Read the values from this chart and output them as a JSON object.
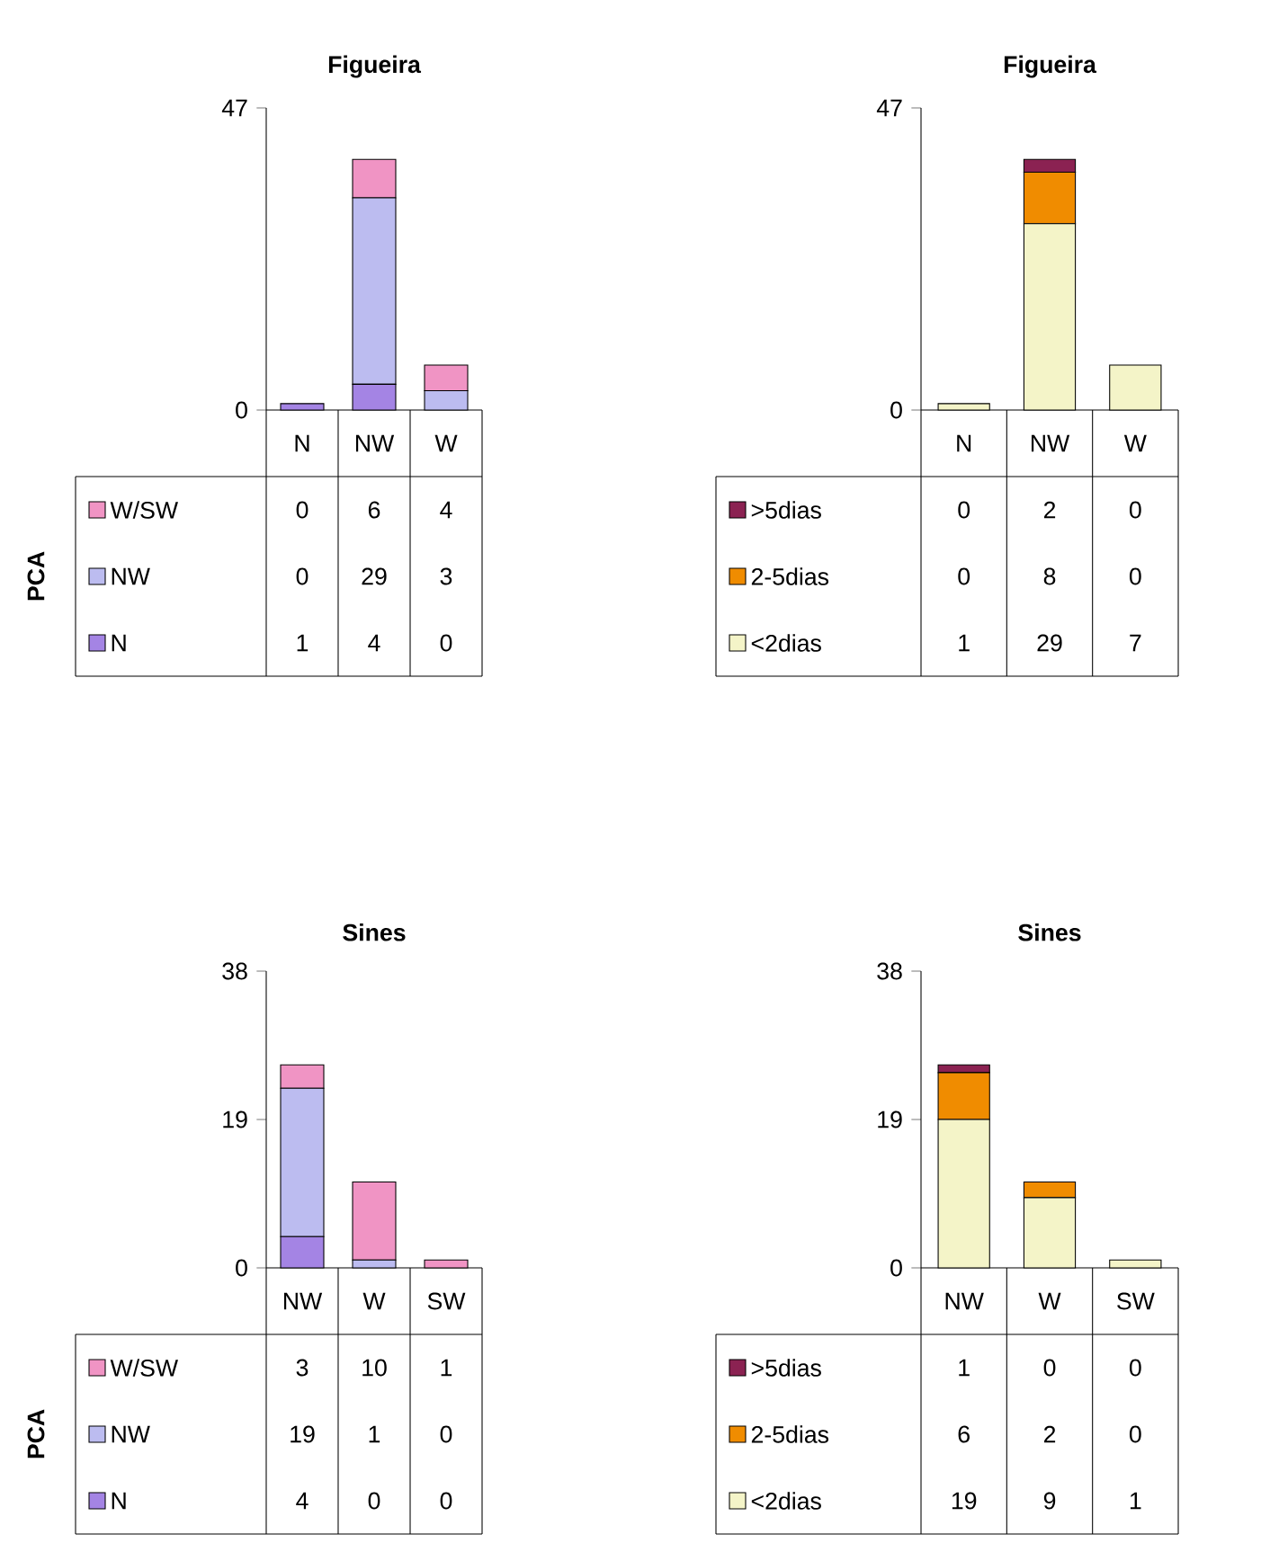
{
  "chart_data": [
    {
      "type": "bar",
      "stacked": true,
      "title": "Figueira",
      "ylabel": "PCA",
      "categories": [
        "N",
        "NW",
        "W"
      ],
      "ylim": [
        0,
        47
      ],
      "yticks": [
        0,
        47
      ],
      "data_labels": true,
      "legend": "bottom",
      "series": [
        {
          "name": "N",
          "color": "#a484e4",
          "values": [
            1,
            4,
            0
          ]
        },
        {
          "name": "NW",
          "color": "#bcbcf0",
          "values": [
            0,
            29,
            3
          ]
        },
        {
          "name": "W/SW",
          "color": "#f094c4",
          "values": [
            0,
            6,
            4
          ]
        }
      ]
    },
    {
      "type": "bar",
      "stacked": true,
      "title": "Figueira",
      "categories": [
        "N",
        "NW",
        "W"
      ],
      "ylim": [
        0,
        47
      ],
      "yticks": [
        0,
        47
      ],
      "data_labels": true,
      "legend": "bottom",
      "series": [
        {
          "name": "<2dias",
          "color": "#f4f4c8",
          "values": [
            1,
            29,
            7
          ]
        },
        {
          "name": "2-5dias",
          "color": "#f08c00",
          "values": [
            0,
            8,
            0
          ]
        },
        {
          "name": ">5dias",
          "color": "#8b2252",
          "values": [
            0,
            2,
            0
          ]
        }
      ]
    },
    {
      "type": "bar",
      "stacked": true,
      "title": "Sines",
      "ylabel": "PCA",
      "categories": [
        "NW",
        "W",
        "SW"
      ],
      "ylim": [
        0,
        38
      ],
      "yticks": [
        0,
        19,
        38
      ],
      "data_labels": true,
      "legend": "bottom",
      "series": [
        {
          "name": "N",
          "color": "#a484e4",
          "values": [
            4,
            0,
            0
          ]
        },
        {
          "name": "NW",
          "color": "#bcbcf0",
          "values": [
            19,
            1,
            0
          ]
        },
        {
          "name": "W/SW",
          "color": "#f094c4",
          "values": [
            3,
            10,
            1
          ]
        }
      ]
    },
    {
      "type": "bar",
      "stacked": true,
      "title": "Sines",
      "categories": [
        "NW",
        "W",
        "SW"
      ],
      "ylim": [
        0,
        38
      ],
      "yticks": [
        0,
        19,
        38
      ],
      "data_labels": true,
      "legend": "bottom",
      "series": [
        {
          "name": "<2dias",
          "color": "#f4f4c8",
          "values": [
            19,
            9,
            1
          ]
        },
        {
          "name": "2-5dias",
          "color": "#f08c00",
          "values": [
            6,
            2,
            0
          ]
        },
        {
          "name": ">5dias",
          "color": "#8b2252",
          "values": [
            1,
            0,
            0
          ]
        }
      ]
    }
  ]
}
